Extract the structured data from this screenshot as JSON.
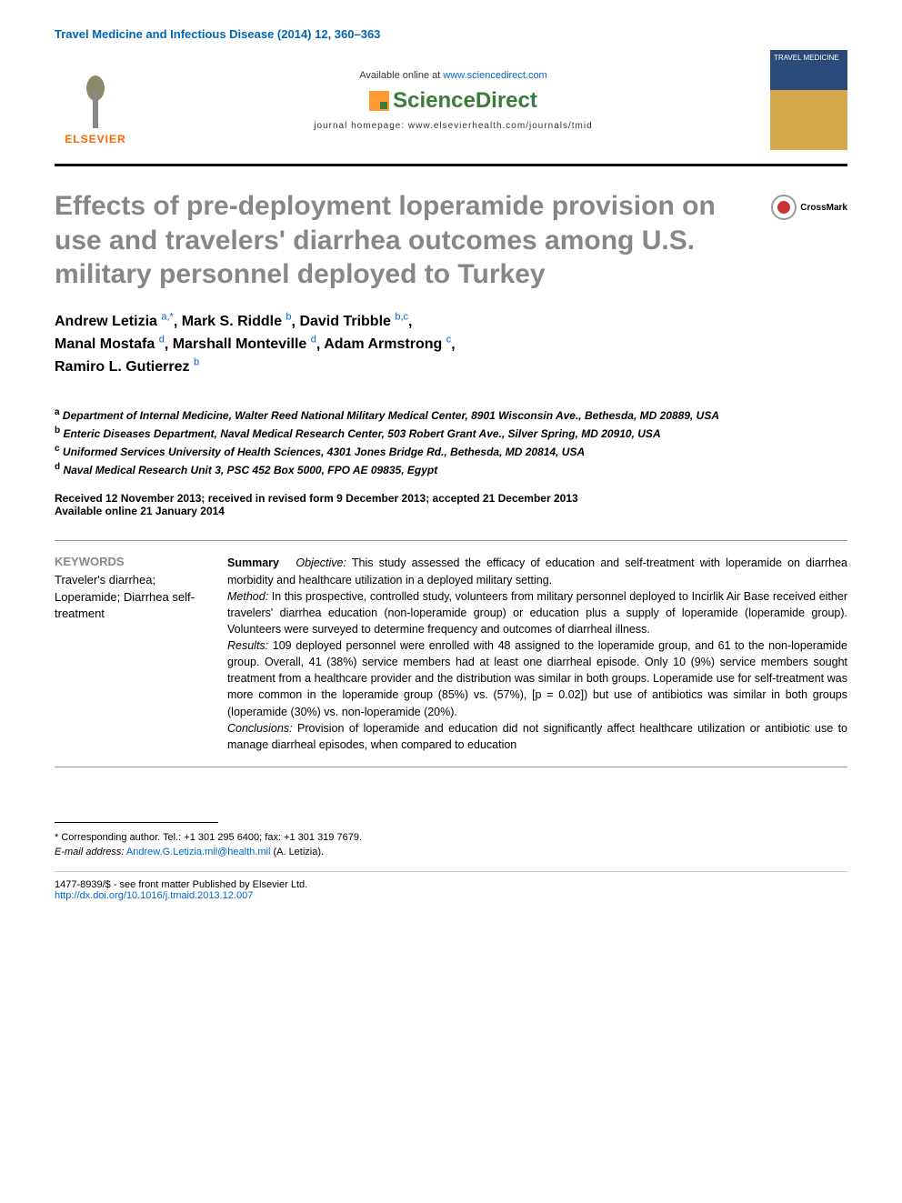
{
  "journal_ref": "Travel Medicine and Infectious Disease (2014) 12, 360–363",
  "banner": {
    "elsevier": "ELSEVIER",
    "available_prefix": "Available online at ",
    "sd_url": "www.sciencedirect.com",
    "sciencedirect": "ScienceDirect",
    "homepage": "journal homepage: www.elsevierhealth.com/journals/tmid",
    "cover_text": "TRAVEL MEDICINE"
  },
  "crossmark": "CrossMark",
  "title": "Effects of pre-deployment loperamide provision on use and travelers' diarrhea outcomes among U.S. military personnel deployed to Turkey",
  "authors": [
    {
      "name": "Andrew Letizia",
      "affil": "a,*"
    },
    {
      "name": "Mark S. Riddle",
      "affil": "b"
    },
    {
      "name": "David Tribble",
      "affil": "b,c"
    },
    {
      "name": "Manal Mostafa",
      "affil": "d"
    },
    {
      "name": "Marshall Monteville",
      "affil": "d"
    },
    {
      "name": "Adam Armstrong",
      "affil": "c"
    },
    {
      "name": "Ramiro L. Gutierrez",
      "affil": "b"
    }
  ],
  "affiliations": {
    "a": "Department of Internal Medicine, Walter Reed National Military Medical Center, 8901 Wisconsin Ave., Bethesda, MD 20889, USA",
    "b": "Enteric Diseases Department, Naval Medical Research Center, 503 Robert Grant Ave., Silver Spring, MD 20910, USA",
    "c": "Uniformed Services University of Health Sciences, 4301 Jones Bridge Rd., Bethesda, MD 20814, USA",
    "d": "Naval Medical Research Unit 3, PSC 452 Box 5000, FPO AE 09835, Egypt"
  },
  "dates": {
    "received": "Received 12 November 2013; received in revised form 9 December 2013; accepted 21 December 2013",
    "online": "Available online 21 January 2014"
  },
  "keywords": {
    "title": "KEYWORDS",
    "items": "Traveler's diarrhea; Loperamide; Diarrhea self-treatment"
  },
  "abstract": {
    "summary_label": "Summary",
    "objective_label": "Objective:",
    "objective": "This study assessed the efficacy of education and self-treatment with loperamide on diarrhea morbidity and healthcare utilization in a deployed military setting.",
    "method_label": "Method:",
    "method": "In this prospective, controlled study, volunteers from military personnel deployed to Incirlik Air Base received either travelers' diarrhea education (non-loperamide group) or education plus a supply of loperamide (loperamide group). Volunteers were surveyed to determine frequency and outcomes of diarrheal illness.",
    "results_label": "Results:",
    "results": "109 deployed personnel were enrolled with 48 assigned to the loperamide group, and 61 to the non-loperamide group. Overall, 41 (38%) service members had at least one diarrheal episode. Only 10 (9%) service members sought treatment from a healthcare provider and the distribution was similar in both groups. Loperamide use for self-treatment was more common in the loperamide group (85%) vs. (57%), [p = 0.02]) but use of antibiotics was similar in both groups (loperamide (30%) vs. non-loperamide (20%).",
    "conclusions_label": "Conclusions:",
    "conclusions": "Provision of loperamide and education did not significantly affect healthcare utilization or antibiotic use to manage diarrheal episodes, when compared to education"
  },
  "corresponding": {
    "text": "* Corresponding author. Tel.: +1 301 295 6400; fax: +1 301 319 7679.",
    "email_label": "E-mail address:",
    "email": "Andrew.G.Letizia.mil@health.mil",
    "email_suffix": "(A. Letizia)."
  },
  "copyright": {
    "issn": "1477-8939/$ - see front matter Published by Elsevier Ltd.",
    "doi": "http://dx.doi.org/10.1016/j.tmaid.2013.12.007"
  },
  "colors": {
    "title_gray": "#878787",
    "link_blue": "#0066cc",
    "elsevier_orange": "#ff6600",
    "sd_green": "#3a7a3a"
  }
}
